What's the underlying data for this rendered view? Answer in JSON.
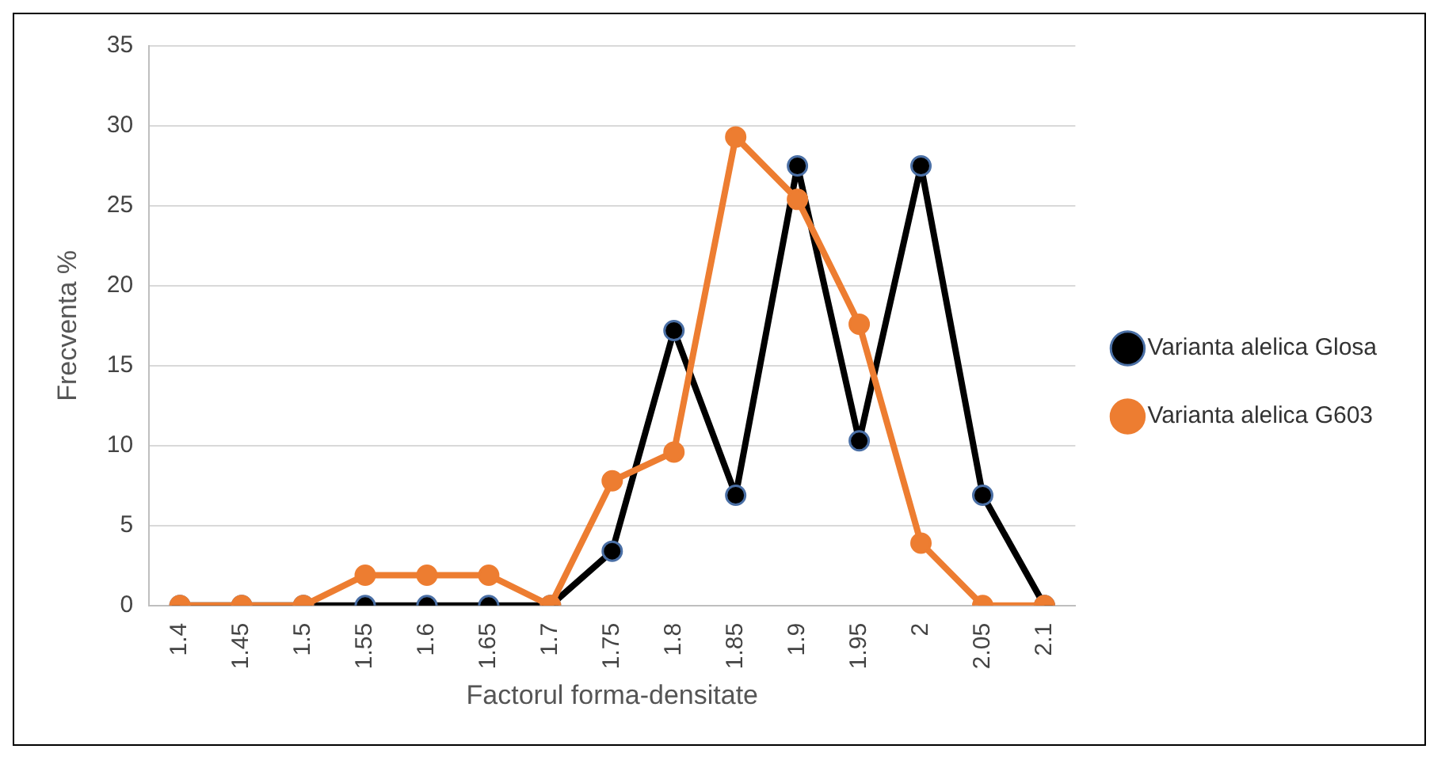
{
  "chart_data": {
    "type": "line",
    "xlabel": "Factorul forma-densitate",
    "ylabel": "Frecventa %",
    "categories": [
      "1.4",
      "1.45",
      "1.5",
      "1.55",
      "1.6",
      "1.65",
      "1.7",
      "1.75",
      "1.8",
      "1.85",
      "1.9",
      "1.95",
      "2",
      "2.05",
      "2.1"
    ],
    "series": [
      {
        "name": "Varianta alelica Glosa",
        "color": "#000000",
        "values": [
          0,
          0,
          0,
          0,
          0,
          0,
          0,
          3.4,
          17.2,
          6.9,
          27.5,
          10.3,
          27.5,
          6.9,
          0
        ]
      },
      {
        "name": "Varianta alelica G603",
        "color": "#ed7d31",
        "values": [
          0,
          0,
          0,
          1.9,
          1.9,
          1.9,
          0,
          7.8,
          9.6,
          29.3,
          25.4,
          17.6,
          3.9,
          0,
          0
        ]
      }
    ],
    "ylim": [
      0,
      35
    ],
    "yticks": [
      0,
      5,
      10,
      15,
      20,
      25,
      30,
      35
    ],
    "grid": "y",
    "legend": "right",
    "marker": "circle",
    "line_style": "solid"
  }
}
